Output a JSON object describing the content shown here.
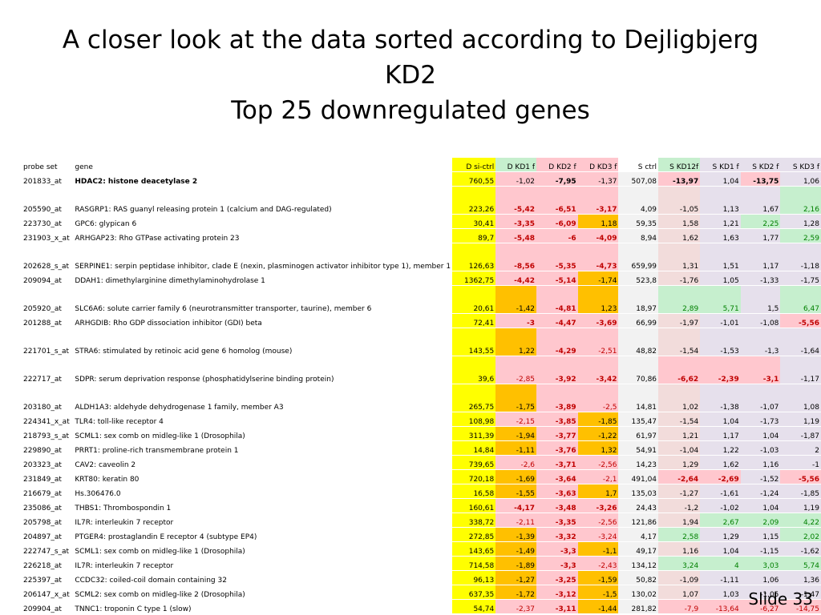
{
  "title": {
    "line1": "A closer look at the data sorted according to Dejligbjerg",
    "line2": "KD2",
    "line3": "Top 25 downregulated genes"
  },
  "colors": {
    "yellow": "#ffff00",
    "orange": "#ffc000",
    "pink": "#ffc7ce",
    "green": "#c6efce",
    "lavender": "#e6e0ec",
    "pinkgray": "#f2dcdb",
    "gray": "#f2f2f2",
    "red_text": "#c00000",
    "green_text": "#008000"
  },
  "table": {
    "headers": [
      "probe set",
      "gene",
      "D si-ctrl",
      "D KD1 f",
      "D KD2 f",
      "D KD3 f",
      "S ctrl",
      "S KD12f",
      "S KD1 f",
      "S KD2 f",
      "S KD3 f"
    ],
    "header_bg": [
      "",
      "",
      "yellow",
      "green",
      "pink",
      "pink",
      "",
      "green",
      "lavender",
      "lavender",
      "lavender"
    ],
    "rows": [
      {
        "probe": "201833_at",
        "gene": "HDAC2: histone deacetylase 2",
        "gene_bold": true,
        "v": [
          "760,55",
          "-1,02",
          "-7,95",
          "-1,37",
          "507,08",
          "-13,97",
          "1,04",
          "-13,75",
          "1,06"
        ],
        "bg": [
          "yellow",
          "pink",
          "pink",
          "pink",
          "gray",
          "pink",
          "lavender",
          "pink",
          "lavender"
        ],
        "fmt": [
          "",
          "",
          "b",
          "",
          "",
          "b",
          "",
          "b",
          ""
        ]
      },
      {
        "probe": "205590_at",
        "gene": "RASGRP1: RAS guanyl releasing protein 1 (calcium and DAG-regulated)",
        "tall": true,
        "v": [
          "223,26",
          "-5,42",
          "-6,51",
          "-3,17",
          "4,09",
          "-1,05",
          "1,13",
          "1,67",
          "2,16"
        ],
        "bg": [
          "yellow",
          "pink",
          "pink",
          "pink",
          "gray",
          "pinkgray",
          "lavender",
          "lavender",
          "green"
        ],
        "fmt": [
          "",
          "rb",
          "rb",
          "rb",
          "",
          "",
          "",
          "",
          "g"
        ]
      },
      {
        "probe": "223730_at",
        "gene": "GPC6: glypican 6",
        "v": [
          "30,41",
          "-3,35",
          "-6,09",
          "1,18",
          "59,35",
          "1,58",
          "1,21",
          "2,25",
          "1,28"
        ],
        "bg": [
          "yellow",
          "pink",
          "pink",
          "orange",
          "gray",
          "pinkgray",
          "lavender",
          "green",
          "lavender"
        ],
        "fmt": [
          "",
          "rb",
          "rb",
          "",
          "",
          "",
          "",
          "g",
          ""
        ]
      },
      {
        "probe": "231903_x_at",
        "gene": "ARHGAP23: Rho GTPase activating protein 23",
        "v": [
          "89,7",
          "-5,48",
          "-6",
          "-4,09",
          "8,94",
          "1,62",
          "1,63",
          "1,77",
          "2,59"
        ],
        "bg": [
          "yellow",
          "pink",
          "pink",
          "pink",
          "gray",
          "pinkgray",
          "lavender",
          "lavender",
          "green"
        ],
        "fmt": [
          "",
          "rb",
          "rb",
          "rb",
          "",
          "",
          "",
          "",
          "g"
        ]
      },
      {
        "probe": "202628_s_at",
        "gene": "SERPINE1: serpin peptidase inhibitor, clade E (nexin, plasminogen activator inhibitor type 1), member 1",
        "tall": true,
        "v": [
          "126,63",
          "-8,56",
          "-5,35",
          "-4,73",
          "659,99",
          "1,31",
          "1,51",
          "1,17",
          "-1,18"
        ],
        "bg": [
          "yellow",
          "pink",
          "pink",
          "pink",
          "gray",
          "pinkgray",
          "lavender",
          "lavender",
          "lavender"
        ],
        "fmt": [
          "",
          "rb",
          "rb",
          "rb",
          "",
          "",
          "",
          "",
          ""
        ]
      },
      {
        "probe": "209094_at",
        "gene": "DDAH1: dimethylarginine dimethylaminohydrolase 1",
        "v": [
          "1362,75",
          "-4,42",
          "-5,14",
          "-1,74",
          "523,8",
          "-1,76",
          "1,05",
          "-1,33",
          "-1,75"
        ],
        "bg": [
          "yellow",
          "pink",
          "pink",
          "orange",
          "gray",
          "pinkgray",
          "lavender",
          "lavender",
          "lavender"
        ],
        "fmt": [
          "",
          "rb",
          "rb",
          "",
          "",
          "",
          "",
          "",
          ""
        ]
      },
      {
        "probe": "205920_at",
        "gene": "SLC6A6: solute carrier family 6 (neurotransmitter transporter, taurine), member 6",
        "tall": true,
        "v": [
          "20,61",
          "-1,42",
          "-4,81",
          "1,23",
          "18,97",
          "2,89",
          "5,71",
          "1,5",
          "6,47"
        ],
        "bg": [
          "yellow",
          "orange",
          "pink",
          "orange",
          "gray",
          "green",
          "green",
          "lavender",
          "green"
        ],
        "fmt": [
          "",
          "",
          "rb",
          "",
          "",
          "g",
          "g",
          "",
          "g"
        ]
      },
      {
        "probe": "201288_at",
        "gene": "ARHGDIB: Rho GDP dissociation inhibitor (GDI) beta",
        "v": [
          "72,41",
          "-3",
          "-4,47",
          "-3,69",
          "66,99",
          "-1,97",
          "-1,01",
          "-1,08",
          "-5,56"
        ],
        "bg": [
          "yellow",
          "pink",
          "pink",
          "pink",
          "gray",
          "pinkgray",
          "lavender",
          "lavender",
          "pink"
        ],
        "fmt": [
          "",
          "rb",
          "rb",
          "rb",
          "",
          "",
          "",
          "",
          "rb"
        ]
      },
      {
        "probe": "221701_s_at",
        "gene": "STRA6: stimulated by retinoic acid gene 6 homolog (mouse)",
        "tall": true,
        "v": [
          "143,55",
          "1,22",
          "-4,29",
          "-2,51",
          "48,82",
          "-1,54",
          "-1,53",
          "-1,3",
          "-1,64"
        ],
        "bg": [
          "yellow",
          "orange",
          "pink",
          "pink",
          "gray",
          "pinkgray",
          "lavender",
          "lavender",
          "lavender"
        ],
        "fmt": [
          "",
          "",
          "rb",
          "r",
          "",
          "",
          "",
          "",
          ""
        ]
      },
      {
        "probe": "222717_at",
        "gene": "SDPR: serum deprivation response (phosphatidylserine binding protein)",
        "tall": true,
        "v": [
          "39,6",
          "-2,85",
          "-3,92",
          "-3,42",
          "70,86",
          "-6,62",
          "-2,39",
          "-3,1",
          "-1,17"
        ],
        "bg": [
          "yellow",
          "pink",
          "pink",
          "pink",
          "gray",
          "pink",
          "pink",
          "pink",
          "lavender"
        ],
        "fmt": [
          "",
          "r",
          "rb",
          "rb",
          "",
          "rb",
          "rb",
          "rb",
          ""
        ]
      },
      {
        "probe": "203180_at",
        "gene": "ALDH1A3: aldehyde dehydrogenase 1 family, member A3",
        "tall": true,
        "v": [
          "265,75",
          "-1,75",
          "-3,89",
          "-2,5",
          "14,81",
          "1,02",
          "-1,38",
          "-1,07",
          "1,08"
        ],
        "bg": [
          "yellow",
          "orange",
          "pink",
          "pink",
          "gray",
          "pinkgray",
          "lavender",
          "lavender",
          "lavender"
        ],
        "fmt": [
          "",
          "",
          "rb",
          "r",
          "",
          "",
          "",
          "",
          ""
        ]
      },
      {
        "probe": "224341_x_at",
        "gene": "TLR4: toll-like receptor 4",
        "v": [
          "108,98",
          "-2,15",
          "-3,85",
          "-1,85",
          "135,47",
          "-1,54",
          "1,04",
          "-1,73",
          "1,19"
        ],
        "bg": [
          "yellow",
          "pink",
          "pink",
          "orange",
          "gray",
          "pinkgray",
          "lavender",
          "lavender",
          "lavender"
        ],
        "fmt": [
          "",
          "r",
          "rb",
          "",
          "",
          "",
          "",
          "",
          ""
        ]
      },
      {
        "probe": "218793_s_at",
        "gene": "SCML1: sex comb on midleg-like 1 (Drosophila)",
        "v": [
          "311,39",
          "-1,94",
          "-3,77",
          "-1,22",
          "61,97",
          "1,21",
          "1,17",
          "1,04",
          "-1,87"
        ],
        "bg": [
          "yellow",
          "orange",
          "pink",
          "orange",
          "gray",
          "pinkgray",
          "lavender",
          "lavender",
          "lavender"
        ],
        "fmt": [
          "",
          "",
          "rb",
          "",
          "",
          "",
          "",
          "",
          ""
        ]
      },
      {
        "probe": "229890_at",
        "gene": "PRRT1: proline-rich transmembrane protein 1",
        "v": [
          "14,84",
          "-1,11",
          "-3,76",
          "1,32",
          "54,91",
          "-1,04",
          "1,22",
          "-1,03",
          "2"
        ],
        "bg": [
          "yellow",
          "orange",
          "pink",
          "orange",
          "gray",
          "pinkgray",
          "lavender",
          "lavender",
          "lavender"
        ],
        "fmt": [
          "",
          "",
          "rb",
          "",
          "",
          "",
          "",
          "",
          ""
        ]
      },
      {
        "probe": "203323_at",
        "gene": "CAV2: caveolin 2",
        "v": [
          "739,65",
          "-2,6",
          "-3,71",
          "-2,56",
          "14,23",
          "1,29",
          "1,62",
          "1,16",
          "-1"
        ],
        "bg": [
          "yellow",
          "pink",
          "pink",
          "pink",
          "gray",
          "pinkgray",
          "lavender",
          "lavender",
          "lavender"
        ],
        "fmt": [
          "",
          "r",
          "rb",
          "r",
          "",
          "",
          "",
          "",
          ""
        ]
      },
      {
        "probe": "231849_at",
        "gene": "KRT80: keratin 80",
        "v": [
          "720,18",
          "-1,69",
          "-3,64",
          "-2,1",
          "491,04",
          "-2,64",
          "-2,69",
          "-1,52",
          "-5,56"
        ],
        "bg": [
          "yellow",
          "orange",
          "pink",
          "pink",
          "gray",
          "pink",
          "pink",
          "lavender",
          "pink"
        ],
        "fmt": [
          "",
          "",
          "rb",
          "r",
          "",
          "rb",
          "rb",
          "",
          "rb"
        ]
      },
      {
        "probe": "216679_at",
        "gene": "Hs.306476.0",
        "v": [
          "16,58",
          "-1,55",
          "-3,63",
          "1,7",
          "135,03",
          "-1,27",
          "-1,61",
          "-1,24",
          "-1,85"
        ],
        "bg": [
          "yellow",
          "orange",
          "pink",
          "orange",
          "gray",
          "pinkgray",
          "lavender",
          "lavender",
          "lavender"
        ],
        "fmt": [
          "",
          "",
          "rb",
          "",
          "",
          "",
          "",
          "",
          ""
        ]
      },
      {
        "probe": "235086_at",
        "gene": "THBS1: Thrombospondin 1",
        "v": [
          "160,61",
          "-4,17",
          "-3,48",
          "-3,26",
          "24,43",
          "-1,2",
          "-1,02",
          "1,04",
          "1,19"
        ],
        "bg": [
          "yellow",
          "pink",
          "pink",
          "pink",
          "gray",
          "pinkgray",
          "lavender",
          "lavender",
          "lavender"
        ],
        "fmt": [
          "",
          "rb",
          "rb",
          "rb",
          "",
          "",
          "",
          "",
          ""
        ]
      },
      {
        "probe": "205798_at",
        "gene": "IL7R: interleukin 7 receptor",
        "v": [
          "338,72",
          "-2,11",
          "-3,35",
          "-2,56",
          "121,86",
          "1,94",
          "2,67",
          "2,09",
          "4,22"
        ],
        "bg": [
          "yellow",
          "pink",
          "pink",
          "pink",
          "gray",
          "pinkgray",
          "green",
          "green",
          "green"
        ],
        "fmt": [
          "",
          "r",
          "rb",
          "r",
          "",
          "",
          "g",
          "g",
          "g"
        ]
      },
      {
        "probe": "204897_at",
        "gene": "PTGER4: prostaglandin E receptor 4 (subtype EP4)",
        "v": [
          "272,85",
          "-1,39",
          "-3,32",
          "-3,24",
          "4,17",
          "2,58",
          "1,29",
          "1,15",
          "2,02"
        ],
        "bg": [
          "yellow",
          "orange",
          "pink",
          "pink",
          "gray",
          "green",
          "lavender",
          "lavender",
          "green"
        ],
        "fmt": [
          "",
          "",
          "rb",
          "r",
          "",
          "g",
          "",
          "",
          "g"
        ]
      },
      {
        "probe": "222747_s_at",
        "gene": "SCML1: sex comb on midleg-like 1 (Drosophila)",
        "v": [
          "143,65",
          "-1,49",
          "-3,3",
          "-1,1",
          "49,17",
          "1,16",
          "1,04",
          "-1,15",
          "-1,62"
        ],
        "bg": [
          "yellow",
          "orange",
          "pink",
          "orange",
          "gray",
          "pinkgray",
          "lavender",
          "lavender",
          "lavender"
        ],
        "fmt": [
          "",
          "",
          "rb",
          "",
          "",
          "",
          "",
          "",
          ""
        ]
      },
      {
        "probe": "226218_at",
        "gene": "IL7R: interleukin 7 receptor",
        "v": [
          "714,58",
          "-1,89",
          "-3,3",
          "-2,43",
          "134,12",
          "3,24",
          "4",
          "3,03",
          "5,74"
        ],
        "bg": [
          "yellow",
          "orange",
          "pink",
          "pink",
          "gray",
          "green",
          "green",
          "green",
          "green"
        ],
        "fmt": [
          "",
          "",
          "rb",
          "r",
          "",
          "g",
          "g",
          "g",
          "g"
        ]
      },
      {
        "probe": "225397_at",
        "gene": "CCDC32: coiled-coil domain containing 32",
        "v": [
          "96,13",
          "-1,27",
          "-3,25",
          "-1,59",
          "50,82",
          "-1,09",
          "-1,11",
          "1,06",
          "1,36"
        ],
        "bg": [
          "yellow",
          "orange",
          "pink",
          "orange",
          "gray",
          "pinkgray",
          "lavender",
          "lavender",
          "lavender"
        ],
        "fmt": [
          "",
          "",
          "rb",
          "",
          "",
          "",
          "",
          "",
          ""
        ]
      },
      {
        "probe": "206147_x_at",
        "gene": "SCML2: sex comb on midleg-like 2 (Drosophila)",
        "v": [
          "637,35",
          "-1,72",
          "-3,12",
          "-1,5",
          "130,02",
          "1,07",
          "1,03",
          "-1,05",
          "-1,47"
        ],
        "bg": [
          "yellow",
          "orange",
          "pink",
          "orange",
          "gray",
          "pinkgray",
          "lavender",
          "lavender",
          "lavender"
        ],
        "fmt": [
          "",
          "",
          "rb",
          "",
          "",
          "",
          "",
          "",
          ""
        ]
      },
      {
        "probe": "209904_at",
        "gene": "TNNC1: troponin C type 1 (slow)",
        "v": [
          "54,74",
          "-2,37",
          "-3,11",
          "-1,44",
          "281,82",
          "-7,9",
          "-13,64",
          "-6,27",
          "-14,75"
        ],
        "bg": [
          "yellow",
          "pink",
          "pink",
          "orange",
          "gray",
          "pink",
          "pink",
          "pink",
          "pink"
        ],
        "fmt": [
          "",
          "r",
          "rb",
          "",
          "",
          "r",
          "r",
          "r",
          "r"
        ]
      }
    ]
  },
  "footer": {
    "slide_label": "Slide 33"
  }
}
